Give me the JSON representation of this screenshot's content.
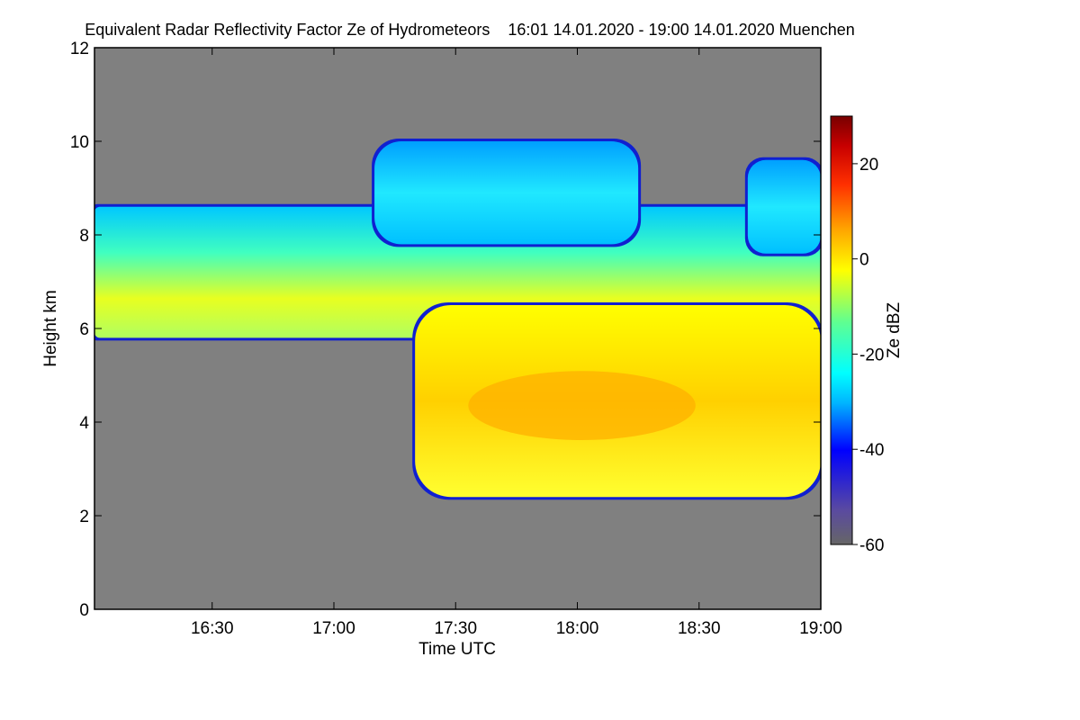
{
  "title": "Equivalent Radar Reflectivity Factor Ze of Hydrometeors    16:01 14.01.2020 - 19:00 14.01.2020 Muenchen",
  "colors": {
    "background_no_echo": "#808080",
    "frame": "#000000",
    "colormap": [
      "#666666",
      "#5a4aa0",
      "#0000ff",
      "#00b4ff",
      "#00ffff",
      "#40ffb0",
      "#ffff00",
      "#ffa000",
      "#ff3000",
      "#c80000",
      "#780000"
    ]
  },
  "chart_data": {
    "type": "heatmap",
    "title": "Equivalent Radar Reflectivity Factor Ze of Hydrometeors    16:01 14.01.2020 - 19:00 14.01.2020 Muenchen",
    "xlabel": "Time UTC",
    "ylabel": "Height km",
    "xlim": [
      "16:01",
      "19:00"
    ],
    "x_ticks": [
      "16:30",
      "17:00",
      "17:30",
      "18:00",
      "18:30",
      "19:00"
    ],
    "ylim": [
      0,
      12
    ],
    "y_ticks": [
      0,
      2,
      4,
      6,
      8,
      10,
      12
    ],
    "colorbar": {
      "label": "Ze dBZ",
      "range": [
        -60,
        30
      ],
      "ticks": [
        -60,
        -40,
        -20,
        0,
        20
      ]
    },
    "features": [
      {
        "name": "upper cloud layer",
        "time_start": "16:01",
        "time_end": "19:00",
        "base_km": 5.8,
        "top_km": 8.6,
        "ze_dbz": [
          -25,
          -5
        ]
      },
      {
        "name": "precipitating core",
        "time_start": "17:20",
        "time_end": "19:00",
        "base_km": 2.4,
        "top_km": 6.5,
        "ze_dbz": [
          -10,
          5
        ]
      },
      {
        "name": "cirrus patch",
        "time_start": "17:10",
        "time_end": "18:15",
        "base_km": 7.8,
        "top_km": 10.0,
        "ze_dbz": [
          -30,
          -20
        ]
      },
      {
        "name": "cirrus patch",
        "time_start": "18:42",
        "time_end": "19:00",
        "base_km": 7.6,
        "top_km": 9.6,
        "ze_dbz": [
          -30,
          -20
        ]
      }
    ]
  }
}
